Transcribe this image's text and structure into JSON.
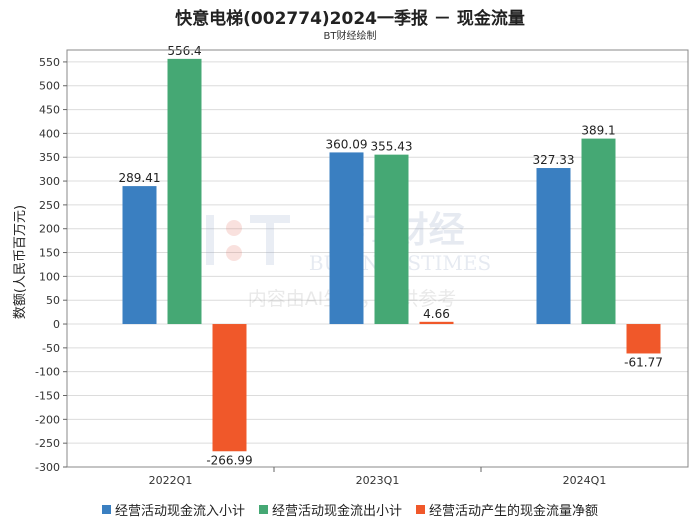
{
  "chart_data": {
    "type": "bar",
    "title": "快意电梯(002774)2024一季报 － 现金流量",
    "subtitle": "BT财经绘制",
    "ylabel": "数额(人民币百万元)",
    "xlabel": "",
    "ylim": [
      -300,
      575
    ],
    "yticks": [
      -300,
      -250,
      -200,
      -150,
      -100,
      -50,
      0,
      50,
      100,
      150,
      200,
      250,
      300,
      350,
      400,
      450,
      500,
      550
    ],
    "grid": true,
    "legend_position": "bottom",
    "categories": [
      "2022Q1",
      "2023Q1",
      "2024Q1"
    ],
    "series": [
      {
        "name": "经营活动现金流入小计",
        "color": "#3a7fc1",
        "values": [
          289.41,
          360.09,
          327.33
        ],
        "labels": [
          "289.41",
          "360.09",
          "327.33"
        ]
      },
      {
        "name": "经营活动现金流出小计",
        "color": "#45a874",
        "values": [
          556.4,
          355.43,
          389.1
        ],
        "labels": [
          "556.4",
          "355.43",
          "389.1"
        ]
      },
      {
        "name": "经营活动产生的现金流量净额",
        "color": "#f0582a",
        "values": [
          -266.99,
          4.66,
          -61.77
        ],
        "labels": [
          "-266.99",
          "4.66",
          "-61.77"
        ]
      }
    ]
  },
  "watermark": {
    "line1": "BT财经",
    "line2": "BUSINESSTIMES",
    "line3": "内容由AI生成，仅供参考"
  }
}
